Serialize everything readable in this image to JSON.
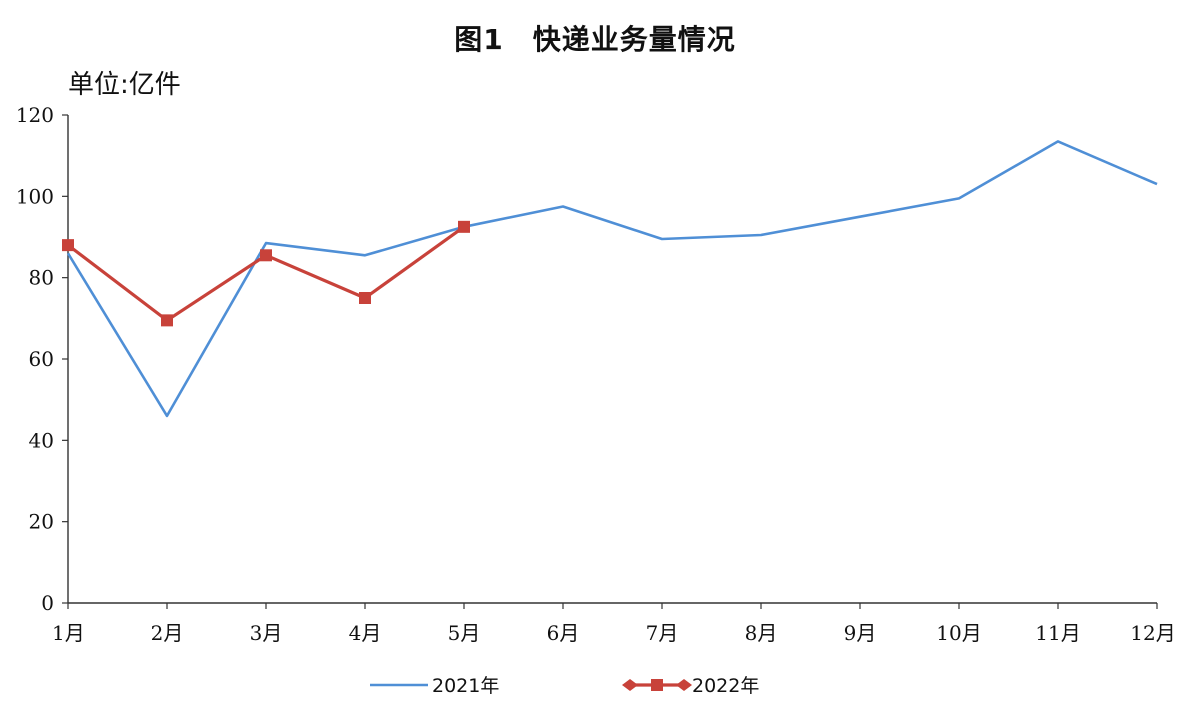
{
  "chart_data": {
    "type": "line",
    "title": "图1　快递业务量情况",
    "unit_label": "单位:亿件",
    "xlabel": "",
    "ylabel": "",
    "categories": [
      "1月",
      "2月",
      "3月",
      "4月",
      "5月",
      "6月",
      "7月",
      "8月",
      "9月",
      "10月",
      "11月",
      "12月"
    ],
    "ylim": [
      0,
      120
    ],
    "yticks": [
      0,
      20,
      40,
      60,
      80,
      100,
      120
    ],
    "grid": false,
    "legend_position": "bottom",
    "series": [
      {
        "name": "2021年",
        "color": "#4f8fd6",
        "marker": "none",
        "values": [
          86,
          46,
          88.5,
          85.5,
          92.5,
          97.5,
          89.5,
          90.5,
          95,
          99.5,
          113.5,
          103
        ]
      },
      {
        "name": "2022年",
        "color": "#c8423a",
        "marker": "square",
        "values": [
          88,
          69.5,
          85.5,
          75,
          92.5,
          null,
          null,
          null,
          null,
          null,
          null,
          null
        ]
      }
    ]
  }
}
